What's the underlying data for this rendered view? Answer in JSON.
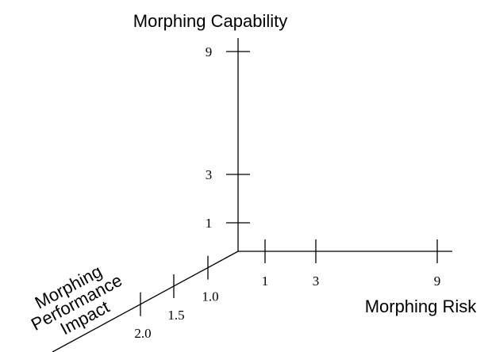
{
  "axes": [
    {
      "label": "Morphing Capability",
      "ticks": [
        "1",
        "3",
        "9"
      ]
    },
    {
      "label": "Morphing Risk",
      "ticks": [
        "1",
        "3",
        "9"
      ]
    },
    {
      "label_lines": [
        "Morphing",
        "Performance",
        "Impact"
      ],
      "ticks": [
        "1.0",
        "1.5",
        "2.0"
      ]
    }
  ]
}
